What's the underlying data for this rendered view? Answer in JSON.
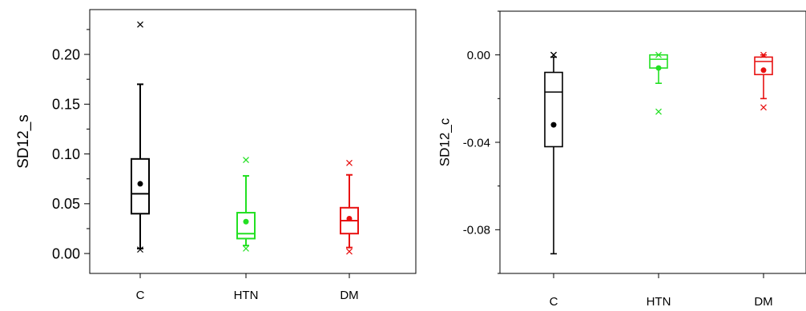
{
  "chart_data": [
    {
      "type": "box",
      "ylabel": "SD12_s",
      "ylim": [
        -0.02,
        0.245
      ],
      "yticks": [
        {
          "v": 0.0,
          "label": "0.00"
        },
        {
          "v": 0.05,
          "label": "0.05"
        },
        {
          "v": 0.1,
          "label": "0.10"
        },
        {
          "v": 0.15,
          "label": "0.15"
        },
        {
          "v": 0.2,
          "label": "0.20"
        }
      ],
      "categories": [
        "C",
        "HTN",
        "DM"
      ],
      "boxes": [
        {
          "group": "C",
          "color": "#000000",
          "whisker_low": 0.005,
          "q1": 0.04,
          "median": 0.06,
          "q3": 0.095,
          "whisker_high": 0.17,
          "mean": 0.07,
          "outliers_x": [
            0.004,
            0.23
          ],
          "min": 0.004,
          "max": 0.23
        },
        {
          "group": "HTN",
          "color": "#22e022",
          "whisker_low": 0.008,
          "q1": 0.015,
          "median": 0.02,
          "q3": 0.041,
          "whisker_high": 0.078,
          "mean": 0.032,
          "outliers_x": [
            0.005,
            0.094
          ],
          "min": 0.005,
          "max": 0.094
        },
        {
          "group": "DM",
          "color": "#e81010",
          "whisker_low": 0.006,
          "q1": 0.02,
          "median": 0.033,
          "q3": 0.046,
          "whisker_high": 0.079,
          "mean": 0.035,
          "outliers_x": [
            0.002,
            0.091
          ],
          "min": 0.002,
          "max": 0.091
        }
      ]
    },
    {
      "type": "box",
      "ylabel": "SD12_c",
      "ylim": [
        -0.1,
        0.02
      ],
      "yticks": [
        {
          "v": 0.0,
          "label": "0.00"
        },
        {
          "v": -0.04,
          "label": "-0.04"
        },
        {
          "v": -0.08,
          "label": "-0.08"
        }
      ],
      "categories": [
        "C",
        "HTN",
        "DM"
      ],
      "boxes": [
        {
          "group": "C",
          "color": "#000000",
          "whisker_low": -0.091,
          "q1": -0.042,
          "median": -0.017,
          "q3": -0.008,
          "whisker_high": -0.001,
          "mean": -0.032,
          "outliers_x": [
            0.0,
            0.0
          ],
          "min": -0.091,
          "max": 0.0
        },
        {
          "group": "HTN",
          "color": "#22e022",
          "whisker_low": -0.013,
          "q1": -0.006,
          "median": -0.002,
          "q3": 0.0,
          "whisker_high": 0.0,
          "mean": -0.006,
          "outliers_x": [
            -0.026,
            0.0
          ],
          "min": -0.026,
          "max": 0.0
        },
        {
          "group": "DM",
          "color": "#e81010",
          "whisker_low": -0.02,
          "q1": -0.009,
          "median": -0.003,
          "q3": -0.001,
          "whisker_high": 0.0,
          "mean": -0.007,
          "outliers_x": [
            -0.024,
            0.0
          ],
          "min": -0.024,
          "max": 0.0
        }
      ]
    }
  ]
}
